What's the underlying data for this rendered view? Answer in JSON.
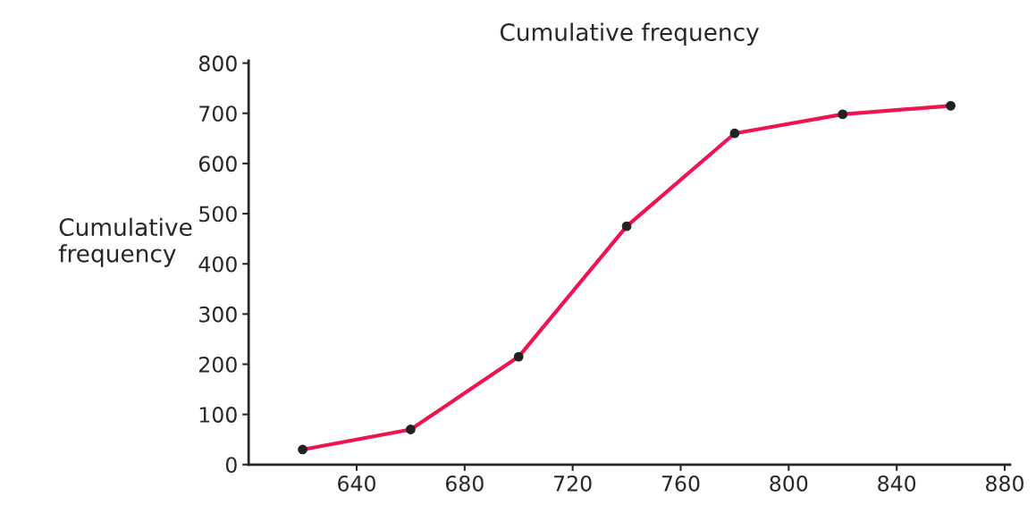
{
  "chart_data": {
    "type": "line",
    "title": "Cumulative frequency",
    "ylabel": "Cumulative\nfrequency",
    "x": [
      620,
      660,
      700,
      740,
      780,
      820,
      860
    ],
    "series": [
      {
        "color": "#ee1450",
        "values": [
          30,
          70,
          215,
          475,
          660,
          698,
          715
        ]
      }
    ],
    "xlim": [
      600,
      882
    ],
    "ylim": [
      0,
      805
    ],
    "xticks": [
      640,
      680,
      720,
      760,
      800,
      840,
      880
    ],
    "yticks": [
      0,
      100,
      200,
      300,
      400,
      500,
      600,
      700,
      800
    ],
    "grid": false,
    "marker": "circle",
    "line_style": "solid"
  }
}
